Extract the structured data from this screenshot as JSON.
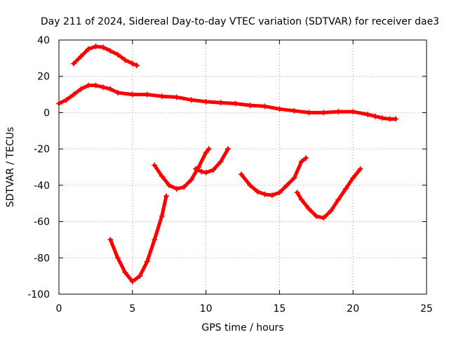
{
  "chart_data": {
    "type": "scatter",
    "title": "Day 211 of 2024, Sidereal Day-to-day VTEC variation (SDTVAR) for receiver dae3",
    "xlabel": "GPS time / hours",
    "ylabel": "SDTVAR / TECUs",
    "xlim": [
      0,
      25
    ],
    "ylim": [
      -100,
      40
    ],
    "xticks": [
      "0",
      "5",
      "10",
      "15",
      "20",
      "25"
    ],
    "yticks": [
      "40",
      "20",
      "0",
      "-20",
      "-40",
      "-60",
      "-80",
      "-100"
    ],
    "xtick_values": [
      0,
      5,
      10,
      15,
      20,
      25
    ],
    "ytick_values": [
      40,
      20,
      0,
      -20,
      -40,
      -60,
      -80,
      -100
    ],
    "grid": true,
    "marker": "+",
    "color": "#ff0000",
    "series": [
      {
        "name": "track-1",
        "points": [
          [
            1.0,
            27
          ],
          [
            1.5,
            31
          ],
          [
            2.0,
            35
          ],
          [
            2.5,
            36.5
          ],
          [
            3.0,
            36
          ],
          [
            3.5,
            34
          ],
          [
            4.0,
            32
          ],
          [
            4.5,
            29
          ],
          [
            5.0,
            27
          ],
          [
            5.3,
            26
          ]
        ]
      },
      {
        "name": "track-2",
        "points": [
          [
            0.0,
            5
          ],
          [
            0.5,
            7
          ],
          [
            1.0,
            10
          ],
          [
            1.5,
            13
          ],
          [
            2.0,
            15
          ],
          [
            2.5,
            15
          ],
          [
            3.0,
            14
          ],
          [
            3.5,
            13
          ],
          [
            4.0,
            11
          ],
          [
            5.0,
            10
          ],
          [
            6.0,
            10
          ],
          [
            7.0,
            9
          ],
          [
            8.0,
            8.5
          ],
          [
            9.0,
            7
          ],
          [
            10.0,
            6
          ],
          [
            11.0,
            5.5
          ],
          [
            12.0,
            5
          ],
          [
            13.0,
            4
          ],
          [
            14.0,
            3.5
          ],
          [
            15.0,
            2
          ],
          [
            16.0,
            1
          ],
          [
            17.0,
            0
          ],
          [
            18.0,
            0
          ],
          [
            19.0,
            0.5
          ],
          [
            20.0,
            0.5
          ],
          [
            21.0,
            -1
          ],
          [
            21.5,
            -2
          ],
          [
            22.0,
            -3
          ],
          [
            22.5,
            -3.5
          ],
          [
            22.9,
            -3.5
          ]
        ]
      },
      {
        "name": "track-3",
        "points": [
          [
            3.5,
            -70
          ],
          [
            4.0,
            -80
          ],
          [
            4.5,
            -88
          ],
          [
            5.0,
            -93
          ],
          [
            5.5,
            -90
          ],
          [
            6.0,
            -82
          ],
          [
            6.5,
            -70
          ],
          [
            7.0,
            -57
          ],
          [
            7.3,
            -46
          ]
        ]
      },
      {
        "name": "track-4",
        "points": [
          [
            6.5,
            -29
          ],
          [
            7.0,
            -35
          ],
          [
            7.5,
            -40
          ],
          [
            8.0,
            -42
          ],
          [
            8.5,
            -41
          ],
          [
            9.0,
            -37
          ],
          [
            9.5,
            -30
          ],
          [
            10.0,
            -22
          ],
          [
            10.2,
            -20
          ]
        ]
      },
      {
        "name": "track-5",
        "points": [
          [
            9.3,
            -31
          ],
          [
            9.7,
            -32.5
          ],
          [
            10.0,
            -33
          ],
          [
            10.5,
            -31.5
          ],
          [
            11.0,
            -27
          ],
          [
            11.5,
            -20
          ]
        ]
      },
      {
        "name": "track-6",
        "points": [
          [
            12.4,
            -34
          ],
          [
            13.0,
            -40
          ],
          [
            13.5,
            -43.5
          ],
          [
            14.0,
            -45
          ],
          [
            14.5,
            -45.5
          ],
          [
            15.0,
            -44
          ],
          [
            15.5,
            -40
          ],
          [
            16.0,
            -36
          ],
          [
            16.5,
            -27
          ],
          [
            16.8,
            -25
          ]
        ]
      },
      {
        "name": "track-7",
        "points": [
          [
            16.2,
            -44
          ],
          [
            16.5,
            -48
          ],
          [
            17.0,
            -53
          ],
          [
            17.5,
            -57
          ],
          [
            18.0,
            -58
          ],
          [
            18.5,
            -54
          ],
          [
            19.0,
            -48
          ],
          [
            19.5,
            -42
          ],
          [
            20.0,
            -36
          ],
          [
            20.5,
            -31
          ]
        ]
      }
    ]
  }
}
